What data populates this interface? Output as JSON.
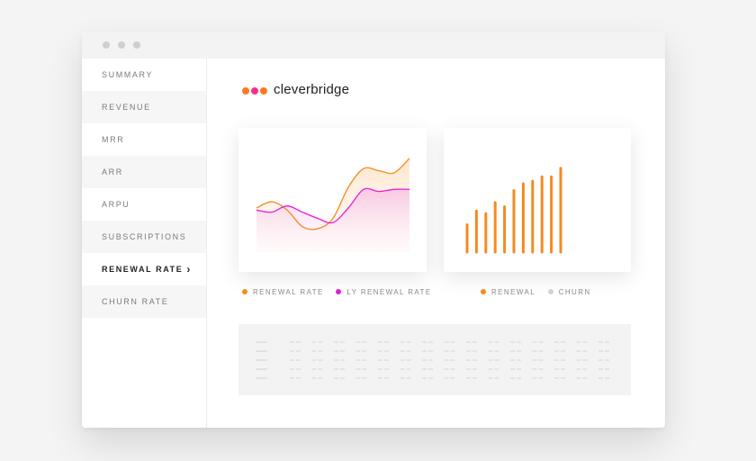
{
  "window": {
    "titlebar_dots": 3
  },
  "sidebar": {
    "items": [
      {
        "label": "SUMMARY"
      },
      {
        "label": "REVENUE"
      },
      {
        "label": "MRR"
      },
      {
        "label": "ARR"
      },
      {
        "label": "ARPU"
      },
      {
        "label": "SUBSCRIPTIONS"
      },
      {
        "label": "RENEWAL RATE",
        "active": true
      },
      {
        "label": "CHURN RATE"
      }
    ]
  },
  "brand": {
    "name": "cleverbridge",
    "logo_colors": [
      "#ff7a1a",
      "#ff2d8a",
      "#ff7a1a"
    ]
  },
  "colors": {
    "orange": "#f58a1f",
    "magenta": "#e61ed2",
    "grey": "#cccccc"
  },
  "line_chart": {
    "legend": [
      {
        "label": "RENEWAL RATE",
        "color": "#f58a1f"
      },
      {
        "label": "LY RENEWAL RATE",
        "color": "#e61ed2"
      }
    ],
    "chart_data": {
      "type": "line",
      "x": [
        0,
        1,
        2,
        3,
        4,
        5,
        6,
        7,
        8,
        9,
        10
      ],
      "series": [
        {
          "name": "RENEWAL RATE",
          "values": [
            40,
            46,
            38,
            22,
            20,
            30,
            60,
            78,
            76,
            74,
            88
          ]
        },
        {
          "name": "LY RENEWAL RATE",
          "values": [
            38,
            36,
            42,
            36,
            30,
            26,
            40,
            58,
            56,
            58,
            58
          ]
        }
      ],
      "ylim": [
        0,
        100
      ]
    }
  },
  "bar_chart": {
    "legend": [
      {
        "label": "RENEWAL",
        "color": "#f58a1f"
      },
      {
        "label": "CHURN",
        "color": "#cccccc"
      }
    ],
    "chart_data": {
      "type": "bar",
      "categories": [
        "1",
        "2",
        "3",
        "4",
        "5",
        "6",
        "7",
        "8",
        "9",
        "10",
        "11",
        "12"
      ],
      "series": [
        {
          "name": "RENEWAL",
          "values": [
            32,
            48,
            45,
            58,
            53,
            72,
            80,
            83,
            88,
            88,
            98,
            0
          ]
        }
      ],
      "ylim": [
        0,
        100
      ]
    }
  },
  "table": {
    "columns": 16,
    "rows": 5
  }
}
